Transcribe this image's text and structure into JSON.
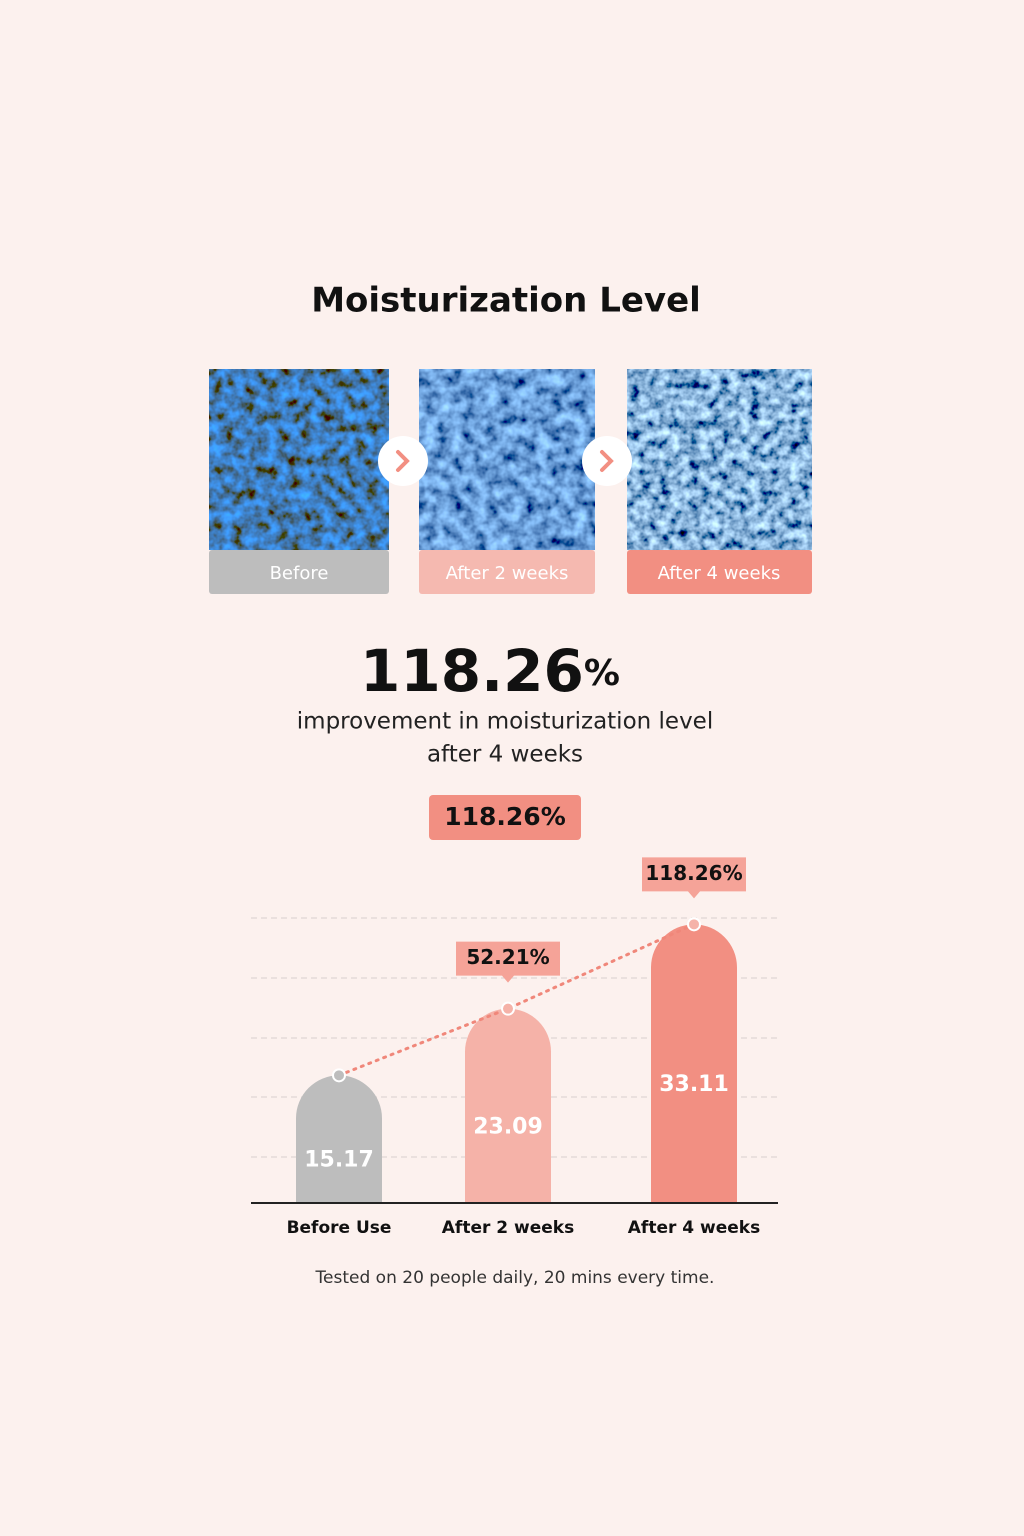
{
  "header": {
    "title": "Moisturization Level"
  },
  "images": {
    "captions": [
      "Before",
      "After 2 weeks",
      "After 4 weeks"
    ]
  },
  "stat": {
    "number": "118.26",
    "unit": "%",
    "description": [
      "improvement in moisturization level",
      "after 4 weeks"
    ],
    "badge": "118.26%"
  },
  "chart_data": {
    "type": "bar",
    "categories": [
      "Before Use",
      "After 2 weeks",
      "After 4 weeks"
    ],
    "values": [
      15.17,
      23.09,
      33.11
    ],
    "colors": [
      "#bdbdbd",
      "#f5b2a8",
      "#f28f82"
    ],
    "annotations": [
      null,
      "52.21%",
      "118.26%"
    ],
    "ylim": [
      0,
      36
    ],
    "grid": true
  },
  "footnote": "Tested on 20 people daily, 20 mins every time."
}
